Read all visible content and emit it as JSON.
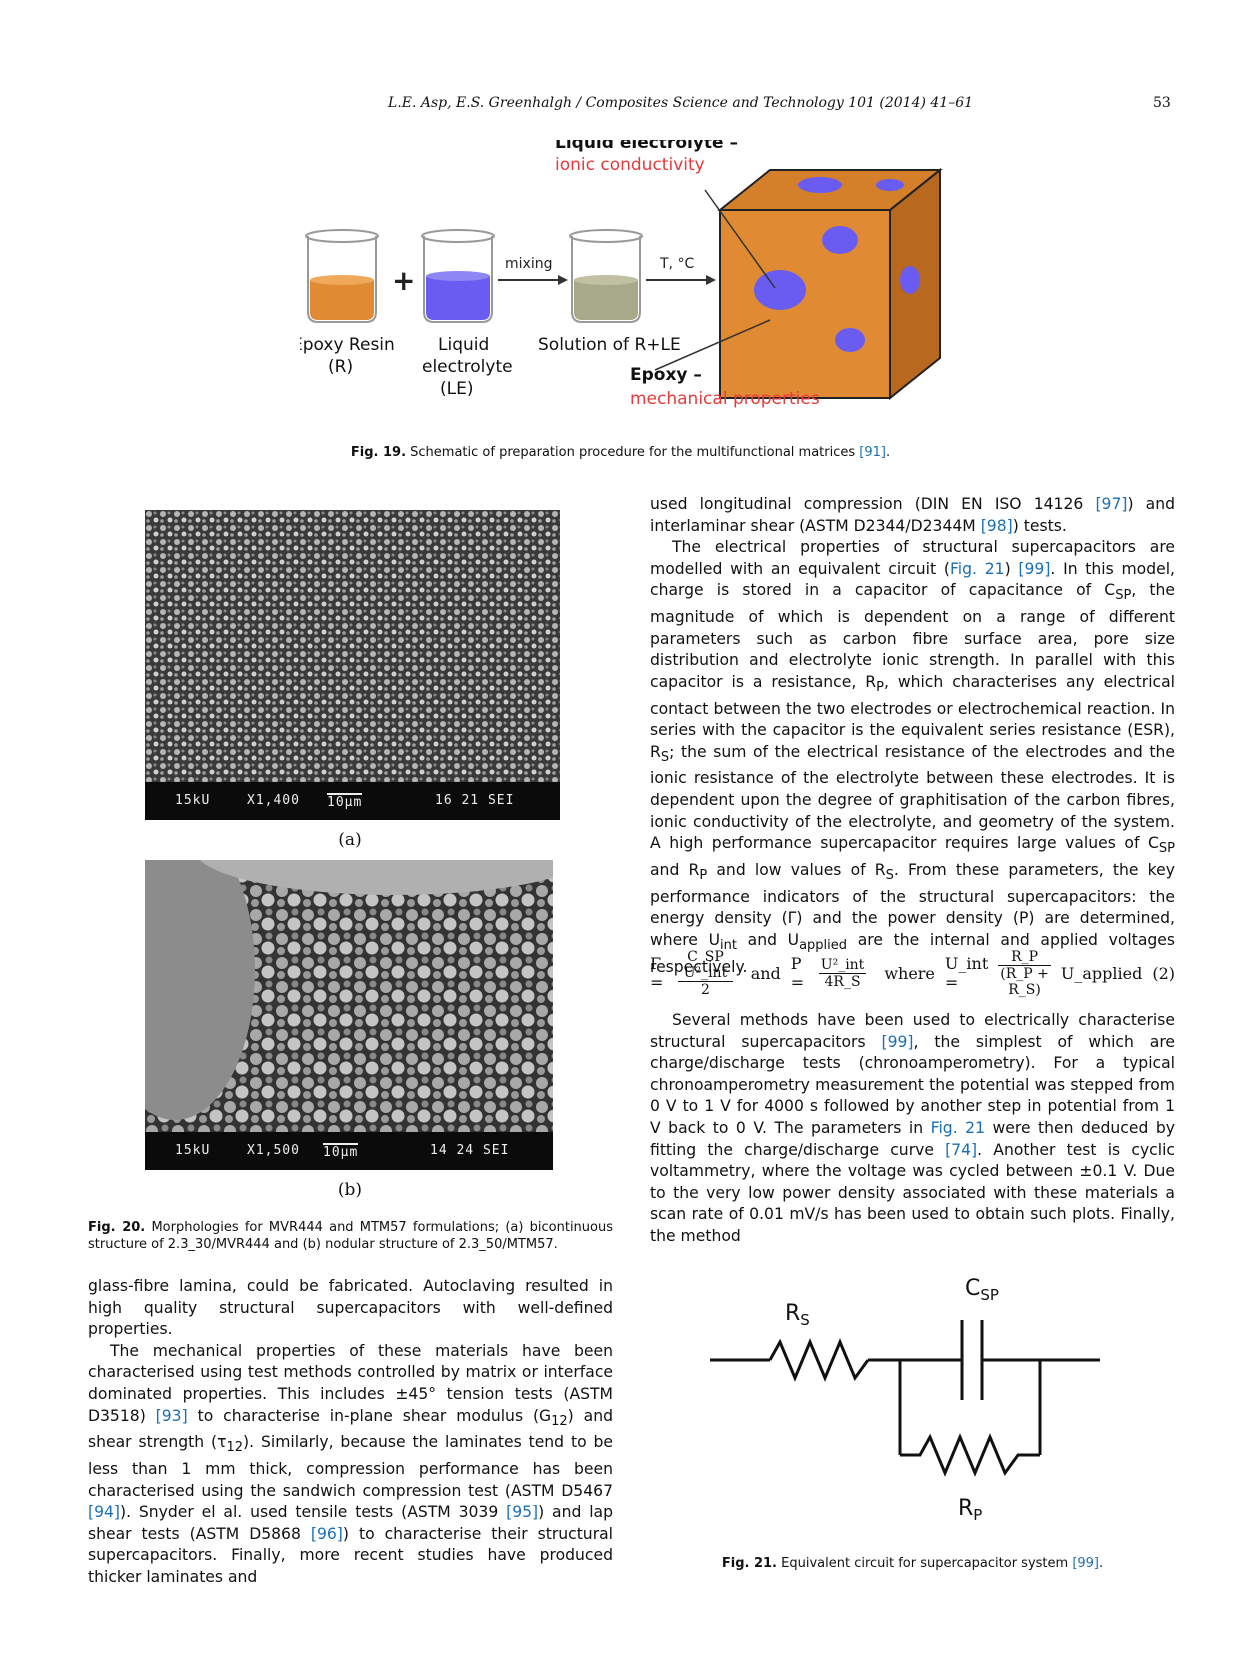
{
  "header": {
    "running_title": "L.E. Asp, E.S. Greenhalgh / Composites Science and Technology 101 (2014) 41–61",
    "page_number": "53"
  },
  "fig19": {
    "liquid_electrolyte_label": "Liquid electrolyte –",
    "ionic_label": "ionic conductivity",
    "plus": "+",
    "mixing_label": "mixing",
    "temp_label": "T, °C",
    "beaker1_line1": "Epoxy Resin",
    "beaker1_line2": "(R)",
    "beaker2_line1": "Liquid",
    "beaker2_line2": "electrolyte",
    "beaker2_line3": "(LE)",
    "beaker3_label": "Solution of R+LE",
    "epoxy_label": "Epoxy –",
    "mech_label": "mechanical properties",
    "caption_bold": "Fig. 19.",
    "caption_text": " Schematic of preparation procedure for the multifunctional matrices ",
    "caption_ref": "[91]",
    "caption_end": "."
  },
  "fig20": {
    "a": {
      "kv": "15kU",
      "mag": "X1,400",
      "scale": "10μm",
      "id": "16 21 SEI",
      "label": "(a)"
    },
    "b": {
      "kv": "15kU",
      "mag": "X1,500",
      "scale": "10μm",
      "id": "14 24 SEI",
      "label": "(b)"
    },
    "caption_bold": "Fig. 20.",
    "caption_text": " Morphologies for MVR444 and MTM57 formulations; (a) bicontinuous structure of 2.3_30/MVR444 and (b) nodular structure of 2.3_50/MTM57."
  },
  "right_col_top": {
    "p1_a": "used longitudinal compression (DIN EN ISO 14126 ",
    "p1_ref1": "[97]",
    "p1_b": ") and interlaminar shear (ASTM D2344/D2344M ",
    "p1_ref2": "[98]",
    "p1_c": ") tests.",
    "p2_a": "The electrical properties of structural supercapacitors are modelled with an equivalent circuit (",
    "p2_ref1": "Fig. 21",
    "p2_b": ") ",
    "p2_ref2": "[99]",
    "p2_c": ". In this model, charge is stored in a capacitor of capacitance of C",
    "p2_sub1": "SP",
    "p2_d": ", the magnitude of which is dependent on a range of different parameters such as carbon fibre surface area, pore size distribution and electrolyte ionic strength. In parallel with this capacitor is a resistance, R",
    "p2_sub2": "P",
    "p2_e": ", which characterises any electrical contact between the two electrodes or electrochemical reaction. In series with the capacitor is the equivalent series resistance (ESR), R",
    "p2_sub3": "S",
    "p2_f": "; the sum of the electrical resistance of the electrodes and the ionic resistance of the electrolyte between these electrodes. It is dependent upon the degree of graphitisation of the carbon fibres, ionic conductivity of the electrolyte, and geometry of the system. A high performance supercapacitor requires large values of C",
    "p2_sub4": "SP",
    "p2_g": " and R",
    "p2_sub5": "P",
    "p2_h": " and low values of R",
    "p2_sub6": "S",
    "p2_i": ". From these parameters, the key performance indicators of the structural supercapacitors: the energy density (Γ) and the power density (P) are determined, where U",
    "p2_sub7": "int",
    "p2_j": " and U",
    "p2_sub8": "applied",
    "p2_k": " are the internal and applied voltages respectively."
  },
  "equation": {
    "gamma": "Γ =",
    "gamma_num": "C_SP U²_int",
    "gamma_den": "2",
    "and": "and",
    "p": "P =",
    "p_num": "U²_int",
    "p_den": "4R_S",
    "where": "where",
    "uint": "U_int =",
    "u_num": "R_P",
    "u_den": "(R_P + R_S)",
    "uapplied": "U_applied",
    "number": "(2)"
  },
  "right_col_bottom": {
    "p_a": "Several methods have been used to electrically characterise structural supercapacitors ",
    "p_ref1": "[99]",
    "p_b": ", the simplest of which are charge/discharge tests (chronoamperometry). For a typical chronoamperometry measurement the potential was stepped from 0 V to 1 V for 4000 s followed by another step in potential from 1 V back to 0 V. The parameters in ",
    "p_ref2": "Fig. 21",
    "p_c": " were then deduced by fitting the charge/discharge curve ",
    "p_ref3": "[74]",
    "p_d": ". Another test is cyclic voltammetry, where the voltage was cycled between ±0.1 V. Due to the very low power density associated with these materials a scan rate of 0.01 mV/s has been used to obtain such plots. Finally, the method"
  },
  "left_col": {
    "p1": "glass-fibre lamina, could be fabricated. Autoclaving resulted in high quality structural supercapacitors with well-defined properties.",
    "p2_a": "The mechanical properties of these materials have been characterised using test methods controlled by matrix or interface dominated properties. This includes ±45° tension tests (ASTM D3518) ",
    "p2_ref1": "[93]",
    "p2_b": " to characterise in-plane shear modulus (G",
    "p2_sub1": "12",
    "p2_c": ") and shear strength (τ",
    "p2_sub2": "12",
    "p2_d": "). Similarly, because the laminates tend to be less than 1 mm thick, compression performance has been characterised using the sandwich compression test (ASTM D5467 ",
    "p2_ref2": "[94]",
    "p2_e": "). Snyder el al. used tensile tests (ASTM 3039 ",
    "p2_ref3": "[95]",
    "p2_f": ") and lap shear tests (ASTM D5868 ",
    "p2_ref4": "[96]",
    "p2_g": ") to characterise their structural supercapacitors. Finally, more recent studies have produced thicker laminates and"
  },
  "fig21": {
    "csp": "C",
    "csp_sub": "SP",
    "rs": "R",
    "rs_sub": "S",
    "rp": "R",
    "rp_sub": "P",
    "caption_bold": "Fig. 21.",
    "caption_text": " Equivalent circuit for supercapacitor system ",
    "caption_ref": "[99]",
    "caption_end": "."
  },
  "colors": {
    "link": "#1a6fb5",
    "resin": "#e08a33",
    "electrolyte": "#6a5cf0",
    "solution": "#a8a88a",
    "red_label": "#e8393b"
  }
}
